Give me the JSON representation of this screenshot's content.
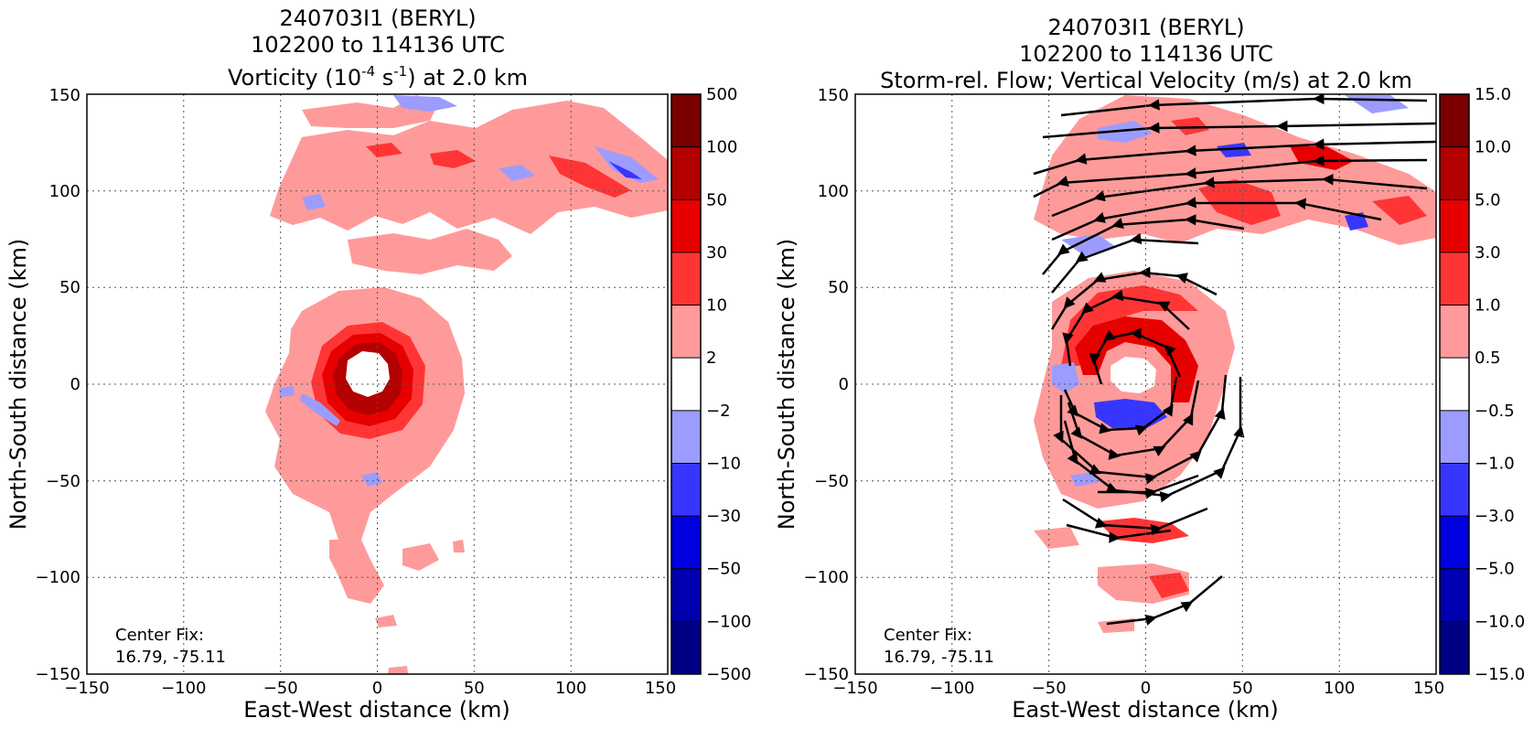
{
  "chart_data": [
    {
      "type": "heatmap",
      "title_lines": [
        "240703I1 (BERYL)",
        "102200 to 114136 UTC"
      ],
      "title_main_parts": [
        "Vorticity (10",
        "-4",
        " s",
        "-1",
        ") at 2.0 km"
      ],
      "xlabel": "East-West distance (km)",
      "ylabel": "North-South distance (km)",
      "xlim": [
        -150,
        150
      ],
      "ylim": [
        -150,
        150
      ],
      "x_ticks": [
        "−150",
        "−100",
        "−50",
        "0",
        "50",
        "100",
        "150"
      ],
      "y_ticks": [
        "−150",
        "−100",
        "−50",
        "0",
        "50",
        "100",
        "150"
      ],
      "grid": true,
      "colorbar": {
        "labels": [
          "500",
          "100",
          "50",
          "30",
          "10",
          "2",
          "−2",
          "−10",
          "−30",
          "−50",
          "−100",
          "−500"
        ],
        "colors": [
          "#7a0000",
          "#b30000",
          "#e60000",
          "#ff3535",
          "#ff9a9a",
          "#ffffff",
          "#9c9cff",
          "#3636ff",
          "#0000e0",
          "#0000b0",
          "#000085"
        ]
      },
      "annotation": [
        "Center Fix:",
        "16.79, -75.11"
      ],
      "regions": [
        {
          "level": "2 to 10",
          "color": "#ff9a9a",
          "description": "broad weak positive vorticity around eyewall and in northern band"
        },
        {
          "level": "10 to 30",
          "color": "#ff3535",
          "description": "eyewall ring"
        },
        {
          "level": "30 to 50",
          "color": "#e60000",
          "description": "inner eyewall"
        },
        {
          "level": "50 to 100",
          "color": "#b30000",
          "description": "eyewall core"
        },
        {
          "level": "-10 to -2",
          "color": "#9c9cff",
          "description": "scattered negative patches"
        }
      ]
    },
    {
      "type": "heatmap",
      "title_lines": [
        "240703I1 (BERYL)",
        "102200 to 114136 UTC"
      ],
      "title_main_parts": [
        "Storm-rel. Flow; Vertical Velocity (m/s) at 2.0 km"
      ],
      "xlabel": "East-West distance (km)",
      "ylabel": "North-South distance (km)",
      "xlim": [
        -150,
        150
      ],
      "ylim": [
        -150,
        150
      ],
      "x_ticks": [
        "−150",
        "−100",
        "−50",
        "0",
        "50",
        "100",
        "150"
      ],
      "y_ticks": [
        "−150",
        "−100",
        "−50",
        "0",
        "50",
        "100",
        "150"
      ],
      "grid": true,
      "colorbar": {
        "labels": [
          "15.0",
          "10.0",
          "5.0",
          "3.0",
          "1.0",
          "0.5",
          "−0.5",
          "−1.0",
          "−3.0",
          "−5.0",
          "−10.0",
          "−15.0"
        ],
        "colors": [
          "#7a0000",
          "#b30000",
          "#e60000",
          "#ff3535",
          "#ff9a9a",
          "#ffffff",
          "#9c9cff",
          "#3636ff",
          "#0000e0",
          "#0000b0",
          "#000085"
        ]
      },
      "annotation": [
        "Center Fix:",
        "16.79, -75.11"
      ],
      "overlay": "storm-relative streamlines (counterclockwise around center)"
    }
  ]
}
